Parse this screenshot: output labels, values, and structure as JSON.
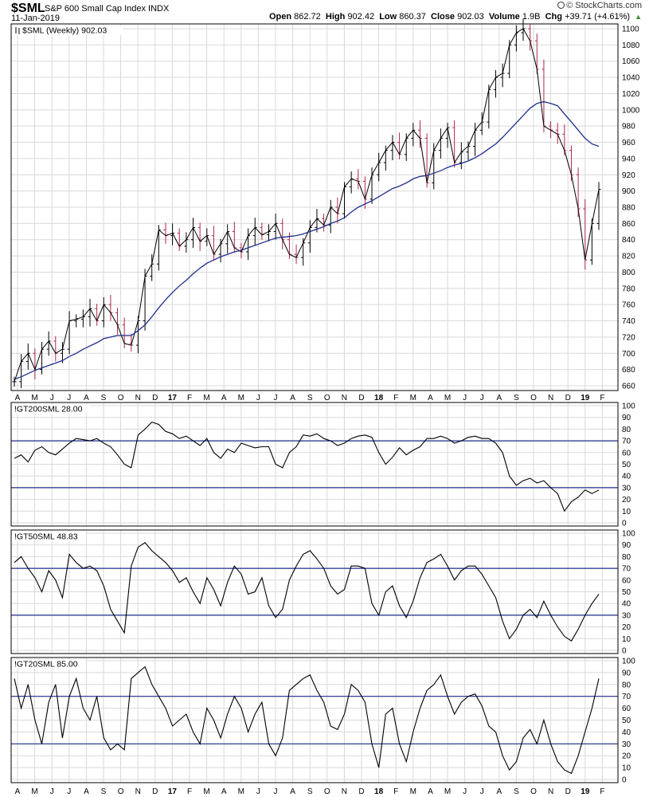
{
  "header": {
    "symbol": "$SML",
    "name": "S&P 600 Small Cap Index",
    "exchange": "INDX",
    "date": "11-Jan-2019",
    "open_label": "Open",
    "open_value": "862.72",
    "high_label": "High",
    "high_value": "902.42",
    "low_label": "Low",
    "low_value": "860.37",
    "close_label": "Close",
    "close_value": "902.03",
    "volume_label": "Volume",
    "volume_value": "1.9B",
    "chg_label": "Chg",
    "chg_value": "+39.71 (+4.61%)",
    "brand": "© StockCharts.com",
    "trend_icon": "up-triangle-icon"
  },
  "colors": {
    "price_line": "#000000",
    "up_bar": "#000000",
    "down_bar": "#b0284a",
    "moving_average": "#1f2e8c",
    "threshold_line": "#1f2e8c",
    "grid": "#d9d9d9",
    "border": "#000000"
  },
  "x_axis_labels": [
    "A",
    "M",
    "J",
    "J",
    "A",
    "S",
    "O",
    "N",
    "D",
    "17",
    "F",
    "M",
    "A",
    "M",
    "J",
    "J",
    "A",
    "S",
    "O",
    "N",
    "D",
    "18",
    "F",
    "M",
    "A",
    "M",
    "J",
    "J",
    "A",
    "S",
    "O",
    "N",
    "D",
    "19",
    "F"
  ],
  "x_axis_bold": [
    "17",
    "18",
    "19"
  ],
  "chart_data": [
    {
      "type": "line",
      "title": "$SML (Weekly) 902.03",
      "legend_icon": "ohlc-bars-icon",
      "x_start": "2016-04-01",
      "x_end": "2019-01-11",
      "x_interval_days": 7,
      "ylim": [
        660,
        1100
      ],
      "yticks": [
        660,
        680,
        700,
        720,
        740,
        760,
        780,
        800,
        820,
        840,
        860,
        880,
        900,
        920,
        940,
        960,
        980,
        1000,
        1020,
        1040,
        1060,
        1080,
        1100
      ],
      "grid": true,
      "series": [
        {
          "name": "$SML",
          "values": [
            665,
            690,
            700,
            680,
            705,
            715,
            700,
            705,
            740,
            742,
            745,
            755,
            740,
            760,
            750,
            735,
            712,
            710,
            740,
            795,
            810,
            852,
            845,
            848,
            832,
            840,
            855,
            838,
            845,
            822,
            835,
            850,
            830,
            825,
            845,
            855,
            846,
            850,
            860,
            840,
            822,
            818,
            836,
            855,
            866,
            858,
            880,
            872,
            905,
            915,
            912,
            890,
            920,
            935,
            950,
            960,
            945,
            965,
            975,
            965,
            910,
            950,
            965,
            978,
            935,
            948,
            955,
            975,
            985,
            1025,
            1040,
            1045,
            1080,
            1095,
            1100,
            1085,
            1050,
            980,
            975,
            970,
            950,
            920,
            878,
            815,
            860,
            902
          ],
          "note": "weekly closes"
        },
        {
          "name": "MA",
          "values": [
            668,
            671,
            675,
            679,
            682,
            685,
            688,
            691,
            696,
            700,
            705,
            709,
            713,
            718,
            720,
            722,
            722,
            722,
            728,
            735,
            745,
            756,
            766,
            775,
            783,
            790,
            798,
            805,
            811,
            815,
            819,
            822,
            825,
            827,
            830,
            833,
            836,
            839,
            842,
            843,
            844,
            845,
            847,
            850,
            853,
            856,
            860,
            863,
            867,
            874,
            880,
            884,
            888,
            893,
            898,
            903,
            906,
            910,
            915,
            918,
            919,
            922,
            925,
            929,
            932,
            934,
            937,
            941,
            946,
            952,
            958,
            966,
            975,
            984,
            993,
            1002,
            1008,
            1010,
            1008,
            1005,
            995,
            985,
            975,
            965,
            958,
            955
          ]
        }
      ]
    },
    {
      "type": "line",
      "title": "!GT200SML 28.00",
      "ylim": [
        0,
        100
      ],
      "yticks": [
        0,
        10,
        20,
        30,
        40,
        50,
        60,
        70,
        80,
        90,
        100
      ],
      "reference_lines": [
        30,
        70
      ],
      "grid": true,
      "series": [
        {
          "name": "!GT200SML",
          "values": [
            55,
            58,
            52,
            62,
            65,
            60,
            58,
            63,
            68,
            72,
            71,
            70,
            72,
            68,
            65,
            58,
            50,
            47,
            75,
            80,
            86,
            84,
            78,
            76,
            72,
            74,
            70,
            66,
            72,
            60,
            55,
            63,
            60,
            68,
            66,
            64,
            65,
            65,
            50,
            47,
            60,
            65,
            75,
            74,
            76,
            72,
            70,
            66,
            68,
            72,
            74,
            75,
            73,
            60,
            50,
            56,
            64,
            58,
            62,
            65,
            72,
            72,
            74,
            72,
            68,
            70,
            73,
            74,
            72,
            72,
            68,
            60,
            40,
            32,
            36,
            38,
            34,
            36,
            30,
            25,
            10,
            18,
            22,
            28,
            25,
            28
          ]
        }
      ]
    },
    {
      "type": "line",
      "title": "!GT50SML 48.83",
      "ylim": [
        0,
        100
      ],
      "yticks": [
        0,
        10,
        20,
        30,
        40,
        50,
        60,
        70,
        80,
        90,
        100
      ],
      "reference_lines": [
        30,
        70
      ],
      "grid": true,
      "series": [
        {
          "name": "!GT50SML",
          "values": [
            75,
            80,
            70,
            62,
            50,
            68,
            60,
            45,
            82,
            75,
            70,
            72,
            68,
            55,
            35,
            25,
            15,
            72,
            88,
            92,
            85,
            80,
            75,
            68,
            58,
            62,
            50,
            40,
            62,
            52,
            38,
            58,
            72,
            65,
            48,
            50,
            62,
            38,
            28,
            35,
            60,
            72,
            82,
            85,
            78,
            70,
            55,
            48,
            52,
            72,
            72,
            70,
            40,
            30,
            50,
            55,
            38,
            28,
            42,
            62,
            75,
            78,
            82,
            72,
            60,
            68,
            72,
            72,
            65,
            55,
            45,
            25,
            10,
            18,
            30,
            35,
            28,
            42,
            30,
            20,
            12,
            8,
            18,
            30,
            40,
            48
          ]
        }
      ]
    },
    {
      "type": "line",
      "title": "!GT20SML 85.00",
      "ylim": [
        0,
        100
      ],
      "yticks": [
        0,
        10,
        20,
        30,
        40,
        50,
        60,
        70,
        80,
        90,
        100
      ],
      "reference_lines": [
        30,
        70
      ],
      "grid": true,
      "series": [
        {
          "name": "!GT20SML",
          "values": [
            85,
            60,
            80,
            50,
            30,
            65,
            80,
            35,
            70,
            85,
            60,
            50,
            70,
            35,
            25,
            30,
            25,
            85,
            90,
            95,
            80,
            70,
            60,
            45,
            50,
            55,
            40,
            30,
            60,
            50,
            35,
            55,
            70,
            60,
            40,
            55,
            65,
            30,
            20,
            35,
            75,
            80,
            85,
            88,
            75,
            65,
            45,
            42,
            55,
            80,
            75,
            65,
            30,
            10,
            55,
            60,
            30,
            15,
            40,
            60,
            75,
            80,
            88,
            70,
            55,
            65,
            70,
            72,
            62,
            45,
            40,
            20,
            8,
            15,
            35,
            42,
            30,
            50,
            30,
            15,
            8,
            5,
            20,
            40,
            60,
            85
          ]
        }
      ]
    }
  ]
}
